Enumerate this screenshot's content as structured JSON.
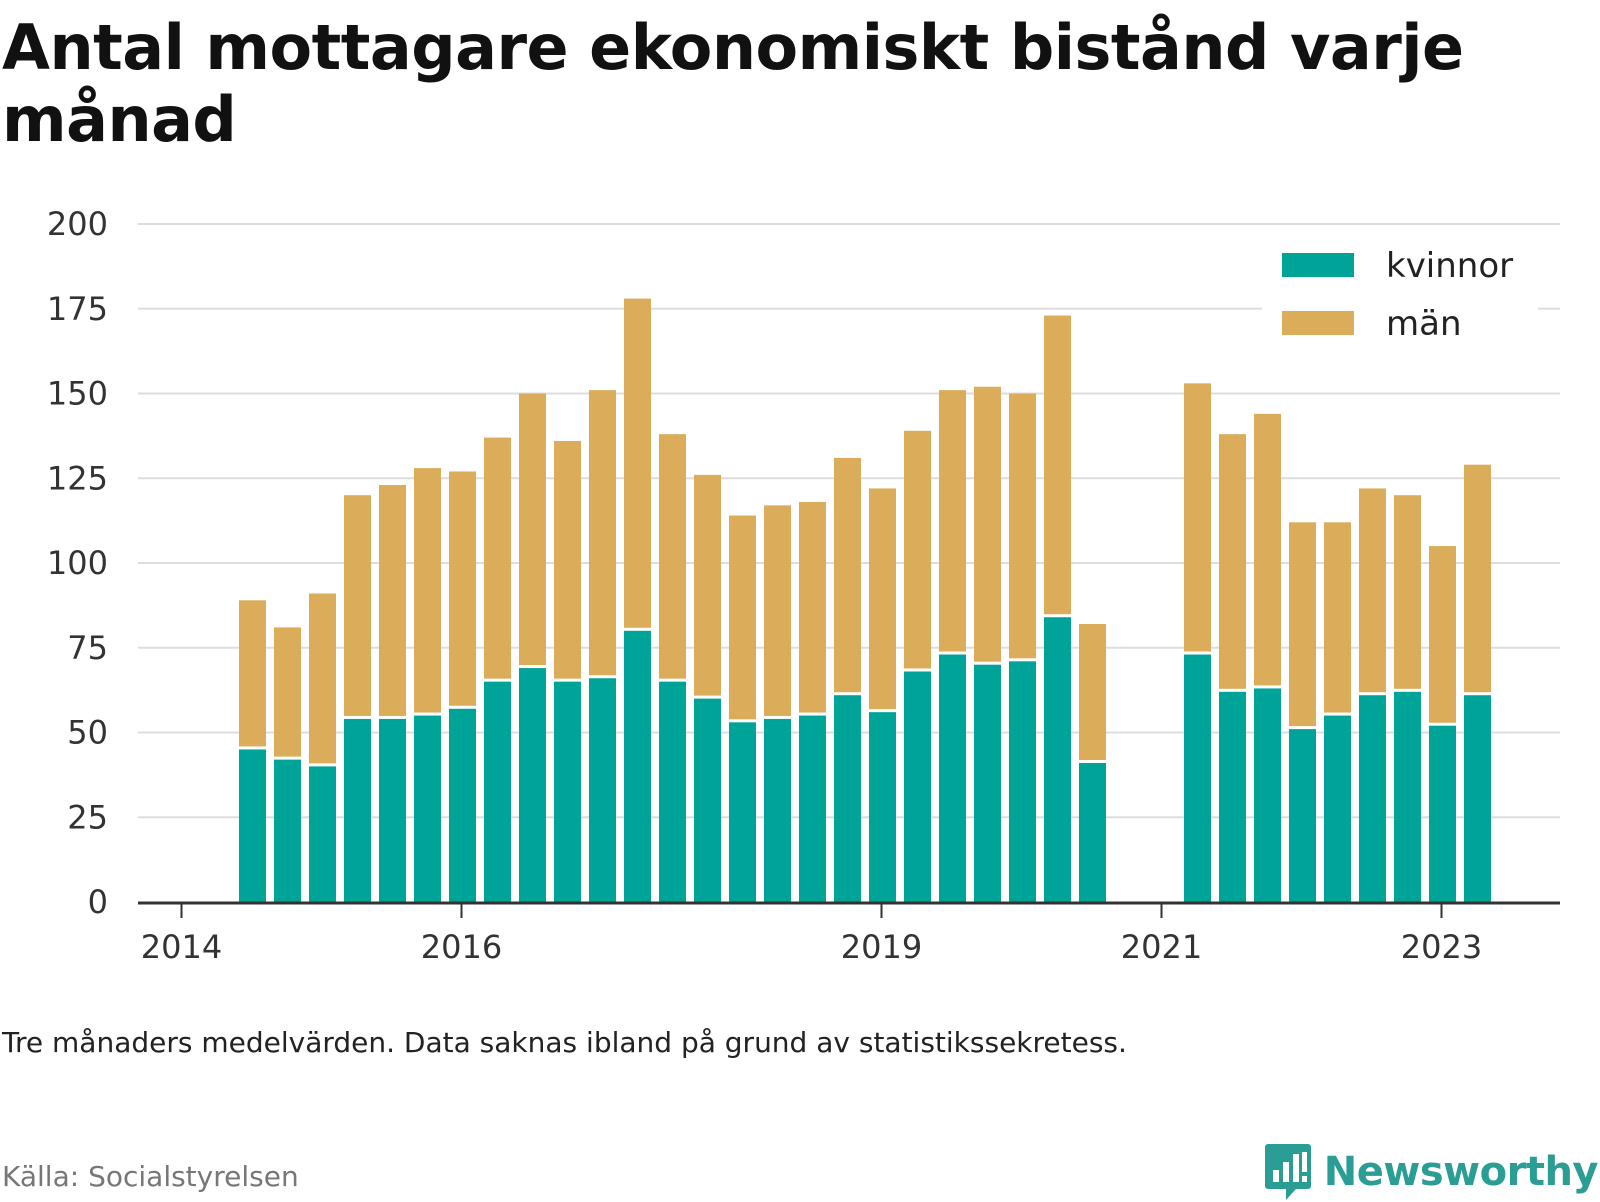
{
  "chart_data": {
    "type": "bar",
    "stacked": true,
    "title": "Antal mottagare ekonomiskt bistånd varje månad",
    "ylim": [
      0,
      200
    ],
    "yticks": [
      0,
      25,
      50,
      75,
      100,
      125,
      150,
      175,
      200
    ],
    "x_tick_labels": [
      "2014",
      "2016",
      "2019",
      "2021",
      "2023"
    ],
    "grid": true,
    "legend_position": "top-right",
    "periods": [
      "2014-04",
      "2014-07",
      "2014-10",
      "2015-01",
      "2015-04",
      "2015-07",
      "2015-10",
      "2016-01",
      "2016-04",
      "2016-07",
      "2016-10",
      "2017-01",
      "2017-04",
      "2017-07",
      "2017-10",
      "2018-01",
      "2018-04",
      "2018-07",
      "2018-10",
      "2019-01",
      "2019-04",
      "2019-07",
      "2019-10",
      "2020-01",
      "2020-04",
      null,
      "2021-01",
      "2021-04",
      "2021-07",
      "2021-10",
      "2022-01",
      "2022-04",
      "2022-07",
      "2022-10",
      "2023-01"
    ],
    "series": [
      {
        "name": "kvinnor",
        "color": "#00a398",
        "values": [
          45,
          42,
          40,
          54,
          54,
          55,
          57,
          65,
          69,
          65,
          66,
          80,
          65,
          60,
          53,
          54,
          55,
          61,
          56,
          68,
          73,
          70,
          71,
          84,
          41,
          null,
          73,
          62,
          63,
          51,
          55,
          61,
          62,
          52,
          61
        ]
      },
      {
        "name": "män",
        "color": "#dbac5a",
        "values": [
          44,
          39,
          51,
          66,
          69,
          73,
          70,
          72,
          81,
          71,
          85,
          98,
          73,
          66,
          61,
          63,
          63,
          70,
          66,
          71,
          78,
          82,
          79,
          89,
          41,
          null,
          80,
          76,
          81,
          61,
          57,
          61,
          58,
          53,
          68
        ]
      }
    ]
  },
  "note": "Tre månaders medelvärden. Data saknas ibland på grund av statistikssekretess.",
  "source": "Källa: Socialstyrelsen",
  "brand": {
    "name": "Newsworthy",
    "icon": "newsworthy-logo-icon",
    "color": "#2a9d94"
  },
  "colors": {
    "grid": "#dddddd",
    "axis": "#333333"
  }
}
